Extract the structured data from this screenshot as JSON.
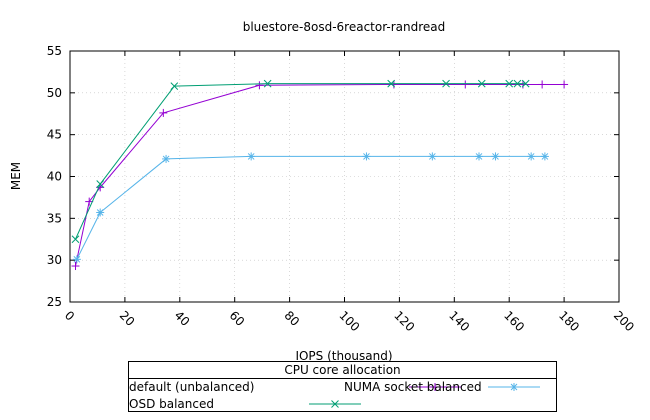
{
  "chart_data": {
    "type": "line",
    "title": "bluestore-8osd-6reactor-randread",
    "xlabel": "IOPS (thousand)",
    "ylabel": "MEM",
    "xlim": [
      0,
      200
    ],
    "ylim": [
      25,
      55
    ],
    "xticks": [
      "0",
      "20",
      "40",
      "60",
      "80",
      "100",
      "120",
      "140",
      "160",
      "180",
      "200"
    ],
    "yticks": [
      "25",
      "30",
      "35",
      "40",
      "45",
      "50",
      "55"
    ],
    "grid": true,
    "legend": {
      "title": "CPU core allocation",
      "placement": "bottom-center"
    },
    "series": [
      {
        "name": "default (unbalanced)",
        "color": "#9400d3",
        "marker": "plus",
        "x": [
          2,
          7,
          11,
          34,
          69,
          118,
          144,
          165,
          172,
          180
        ],
        "y": [
          29.3,
          37.0,
          38.7,
          47.6,
          50.9,
          51.0,
          51.0,
          51.0,
          51.0,
          51.0
        ]
      },
      {
        "name": "NUMA socket balanced",
        "color": "#56b4e9",
        "marker": "star",
        "x": [
          2.5,
          11,
          35,
          66,
          108,
          132,
          149,
          155,
          168,
          173
        ],
        "y": [
          30.1,
          35.7,
          42.1,
          42.4,
          42.4,
          42.4,
          42.4,
          42.4,
          42.4,
          42.4
        ]
      },
      {
        "name": "OSD balanced",
        "color": "#009e73",
        "marker": "x",
        "x": [
          2,
          11,
          38,
          72,
          117,
          137,
          150,
          160,
          163,
          166
        ],
        "y": [
          32.5,
          39.1,
          50.8,
          51.1,
          51.1,
          51.1,
          51.1,
          51.1,
          51.1,
          51.1
        ]
      }
    ]
  }
}
